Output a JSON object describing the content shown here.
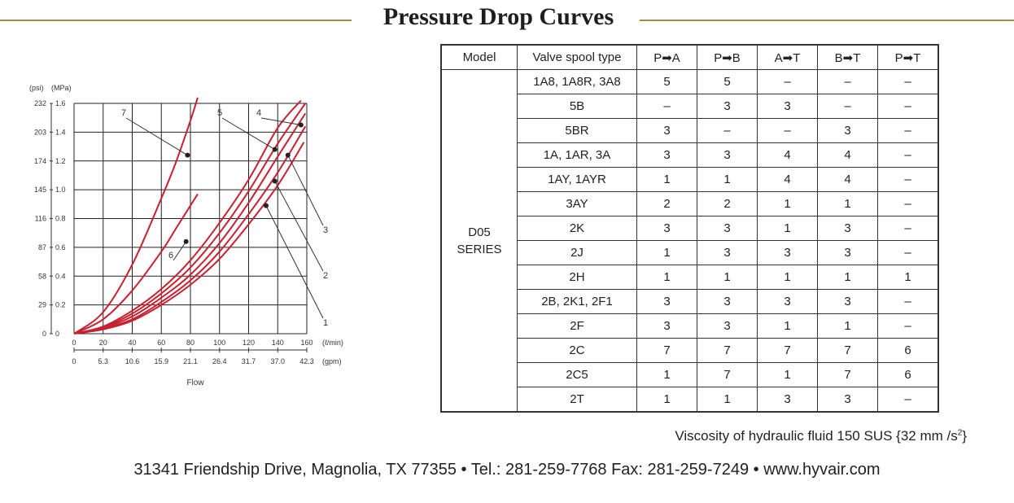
{
  "title": "Pressure Drop Curves",
  "chart_data": {
    "type": "line",
    "y_unit_psi": "(psi)",
    "y_unit_mpa": "(MPa)",
    "y_ticks_psi": [
      "0",
      "29",
      "58",
      "87",
      "116",
      "145",
      "174",
      "203",
      "232"
    ],
    "y_ticks_mpa": [
      "0",
      "0.2",
      "0.4",
      "0.6",
      "0.8",
      "1.0",
      "1.2",
      "1.4",
      "1.6"
    ],
    "x_ticks_lpm": [
      "0",
      "20",
      "40",
      "60",
      "80",
      "100",
      "120",
      "140",
      "160"
    ],
    "x_unit_lpm": "(ℓ/min)",
    "x_ticks_gpm": [
      "0",
      "5.3",
      "10.6",
      "15.9",
      "21.1",
      "26.4",
      "31.7",
      "37.0",
      "42.3"
    ],
    "x_unit_gpm": "(gpm)",
    "xlabel": "Flow",
    "xlim": [
      0,
      160
    ],
    "ylim": [
      0,
      1.6
    ],
    "grid": true,
    "series": [
      {
        "name": "1",
        "x": [
          0,
          20,
          40,
          60,
          80,
          100,
          120,
          140,
          158
        ],
        "y": [
          0,
          0.03,
          0.09,
          0.2,
          0.34,
          0.52,
          0.76,
          1.03,
          1.33
        ],
        "marker": {
          "x": 132,
          "y": 0.89
        }
      },
      {
        "name": "2",
        "x": [
          0,
          20,
          40,
          60,
          80,
          100,
          120,
          140,
          159
        ],
        "y": [
          0,
          0.035,
          0.1,
          0.22,
          0.37,
          0.57,
          0.83,
          1.12,
          1.44
        ],
        "marker": {
          "x": 138,
          "y": 1.06
        }
      },
      {
        "name": "3",
        "x": [
          0,
          20,
          40,
          60,
          80,
          100,
          120,
          140,
          159
        ],
        "y": [
          0,
          0.04,
          0.12,
          0.25,
          0.41,
          0.63,
          0.91,
          1.23,
          1.53
        ],
        "marker": {
          "x": 147,
          "y": 1.24
        }
      },
      {
        "name": "4",
        "x": [
          0,
          20,
          40,
          60,
          80,
          100,
          120,
          140,
          159
        ],
        "y": [
          0,
          0.045,
          0.14,
          0.28,
          0.46,
          0.7,
          0.99,
          1.32,
          1.6
        ],
        "marker": {
          "x": 156,
          "y": 1.45
        }
      },
      {
        "name": "5",
        "x": [
          0,
          20,
          40,
          60,
          80,
          100,
          120,
          140,
          156
        ],
        "y": [
          0,
          0.05,
          0.16,
          0.31,
          0.51,
          0.77,
          1.07,
          1.43,
          1.62
        ],
        "marker": {
          "x": 138,
          "y": 1.28
        }
      },
      {
        "name": "6",
        "x": [
          0,
          20,
          40,
          60,
          70,
          80,
          85
        ],
        "y": [
          0,
          0.1,
          0.3,
          0.57,
          0.73,
          0.89,
          0.97
        ],
        "marker": {
          "x": 77,
          "y": 0.64
        }
      },
      {
        "name": "7",
        "x": [
          0,
          20,
          40,
          60,
          70,
          80,
          85
        ],
        "y": [
          0,
          0.15,
          0.48,
          0.94,
          1.19,
          1.48,
          1.64
        ],
        "marker": {
          "x": 78,
          "y": 1.24
        }
      }
    ]
  },
  "table": {
    "headers": [
      "Model",
      "Valve spool type",
      "P➡A",
      "P➡B",
      "A➡T",
      "B➡T",
      "P➡T"
    ],
    "model_line1": "D05",
    "model_line2": "SERIES",
    "rows": [
      [
        "1A8, 1A8R, 3A8",
        "5",
        "5",
        "–",
        "–",
        "–"
      ],
      [
        "5B",
        "–",
        "3",
        "3",
        "–",
        "–"
      ],
      [
        "5BR",
        "3",
        "–",
        "–",
        "3",
        "–"
      ],
      [
        "1A, 1AR, 3A",
        "3",
        "3",
        "4",
        "4",
        "–"
      ],
      [
        "1AY, 1AYR",
        "1",
        "1",
        "4",
        "4",
        "–"
      ],
      [
        "3AY",
        "2",
        "2",
        "1",
        "1",
        "–"
      ],
      [
        "2K",
        "3",
        "3",
        "1",
        "3",
        "–"
      ],
      [
        "2J",
        "1",
        "3",
        "3",
        "3",
        "–"
      ],
      [
        "2H",
        "1",
        "1",
        "1",
        "1",
        "1"
      ],
      [
        "2B, 2K1, 2F1",
        "3",
        "3",
        "3",
        "3",
        "–"
      ],
      [
        "2F",
        "3",
        "3",
        "1",
        "1",
        "–"
      ],
      [
        "2C",
        "7",
        "7",
        "7",
        "7",
        "6"
      ],
      [
        "2C5",
        "1",
        "7",
        "1",
        "7",
        "6"
      ],
      [
        "2T",
        "1",
        "1",
        "3",
        "3",
        "–"
      ]
    ]
  },
  "note": {
    "prefix": "Viscosity of hydraulic fluid 150 SUS {32 mm /s",
    "sup": "2",
    "suffix": "}"
  },
  "footer": "31341 Friendship Drive, Magnolia, TX 77355  •  Tel.: 281-259-7768 Fax: 281-259-7249  •  www.hyvair.com",
  "colors": {
    "curve": "#c8202f",
    "rule": "#a6893e"
  }
}
